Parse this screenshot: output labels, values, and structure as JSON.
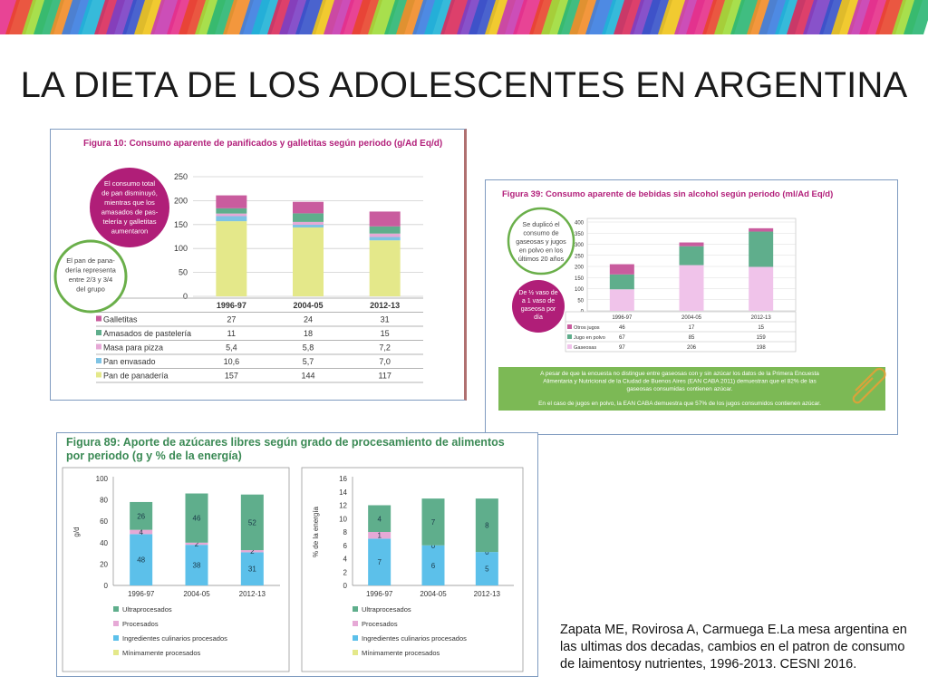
{
  "slide": {
    "title": "LA DIETA DE LOS ADOLESCENTES EN ARGENTINA",
    "citation": "Zapata ME, Rovirosa A, Carmuega E.La mesa argentina en las ultimas dos decadas, cambios en el patron de consumo de laimentosy nutrientes, 1996-2013. CESNI 2016.",
    "banner_colors": [
      "#e6308a",
      "#3b7de0",
      "#f0c419",
      "#2bb673",
      "#7b3fc4",
      "#e8452c",
      "#20b3d6",
      "#c63bb0",
      "#f28c28",
      "#3652c9",
      "#9fdc3a",
      "#d92b5b"
    ]
  },
  "chart_data": [
    {
      "type": "bar",
      "stacked": true,
      "title": "Figura 10: Consumo aparente de panificados y galletitas según periodo (g/Ad Eq/d)",
      "categories": [
        "1996-97",
        "2004-05",
        "2012-13"
      ],
      "ylim": [
        0,
        250
      ],
      "yticks": [
        0,
        50,
        100,
        150,
        200,
        250
      ],
      "grid": true,
      "series": [
        {
          "name": "Pan de panadería",
          "values": [
            157,
            144,
            117
          ],
          "color": "#e4e88a"
        },
        {
          "name": "Pan envasado",
          "values": [
            10.6,
            5.7,
            7.0
          ],
          "labels": [
            "10,6",
            "5,7",
            "7,0"
          ],
          "color": "#7ec3e4"
        },
        {
          "name": "Masa para pizza",
          "values": [
            5.4,
            5.8,
            7.2
          ],
          "labels": [
            "5,4",
            "5,8",
            "7,2"
          ],
          "color": "#e6a9d6"
        },
        {
          "name": "Amasados de pastelería",
          "values": [
            11,
            18,
            15
          ],
          "color": "#5fae8c"
        },
        {
          "name": "Galletitas",
          "values": [
            27,
            24,
            31
          ],
          "color": "#c95c9e"
        }
      ],
      "annotations": [
        "El consumo total de pan disminuyó, mientras que los amasados de pastelería y galletitas aumentaron",
        "El pan de panadería representa entre 2/3 y 3/4 del grupo"
      ]
    },
    {
      "type": "bar",
      "stacked": true,
      "title": "Figura 39: Consumo aparente de bebidas sin alcohol según periodo (ml/Ad Eq/d)",
      "categories": [
        "1996-97",
        "2004-05",
        "2012-13"
      ],
      "ylim": [
        0,
        400
      ],
      "yticks": [
        0,
        50,
        100,
        150,
        200,
        250,
        300,
        350,
        400
      ],
      "grid": true,
      "series": [
        {
          "name": "Gaseosas",
          "values": [
            97,
            206,
            198
          ],
          "color": "#f0c3ea"
        },
        {
          "name": "Jugo en polvo",
          "values": [
            67,
            85,
            159
          ],
          "color": "#5fae8c"
        },
        {
          "name": "Otros jugos",
          "values": [
            46,
            17,
            15
          ],
          "color": "#c95c9e"
        }
      ],
      "annotations": [
        "Se duplicó el consumo de gaseosas y jugos en polvo en los últimos 20 años",
        "De ½ vaso de a 1 vaso de gaseosa por día"
      ],
      "note": [
        "A pesar de que la encuesta no distingue entre gaseosas con y sin azúcar los datos de la Primera Encuesta Alimentaria y Nutricional de la Ciudad de Buenos Aires (EAN CABA 2011) demuestran que el 82% de las gaseosas consumidas contienen azúcar.",
        "En el caso de jugos en polvo, la EAN CABA demuestra que 57% de los jugos consumidos contienen azúcar."
      ]
    },
    {
      "type": "bar",
      "stacked": true,
      "title": "Figura 89: Aporte de azúcares libres según grado de procesamiento de alimentos por periodo (g y % de la energía)",
      "panels": [
        {
          "ylabel": "g/d",
          "ylim": [
            0,
            100
          ],
          "yticks": [
            0,
            20,
            40,
            60,
            80,
            100
          ],
          "categories": [
            "1996-97",
            "2004-05",
            "2012-13"
          ],
          "series": [
            {
              "name": "Mínimamente procesados",
              "values": [
                0,
                0,
                0
              ],
              "color": "#e4e88a"
            },
            {
              "name": "Ingredientes culinarios procesados",
              "values": [
                48,
                38,
                31
              ],
              "color": "#5cc0ea"
            },
            {
              "name": "Procesados",
              "values": [
                4,
                2,
                2
              ],
              "color": "#e6a9d6"
            },
            {
              "name": "Ultraprocesados",
              "values": [
                26,
                46,
                52
              ],
              "color": "#5fae8c"
            }
          ]
        },
        {
          "ylabel": "% de la energía",
          "ylim": [
            0,
            16
          ],
          "yticks": [
            0,
            2,
            4,
            6,
            8,
            10,
            12,
            14,
            16
          ],
          "categories": [
            "1996-97",
            "2004-05",
            "2012-13"
          ],
          "series": [
            {
              "name": "Mínimamente procesados",
              "values": [
                0,
                0,
                0
              ],
              "color": "#e4e88a"
            },
            {
              "name": "Ingredientes culinarios procesados",
              "values": [
                7,
                6,
                5
              ],
              "color": "#5cc0ea"
            },
            {
              "name": "Procesados",
              "values": [
                1,
                0,
                0
              ],
              "color": "#e6a9d6"
            },
            {
              "name": "Ultraprocesados",
              "values": [
                4,
                7,
                8
              ],
              "color": "#5fae8c"
            }
          ]
        }
      ],
      "legend": [
        "Ultraprocesados",
        "Procesados",
        "Ingredientes culinarios procesados",
        "Mínimamente procesados"
      ]
    }
  ]
}
